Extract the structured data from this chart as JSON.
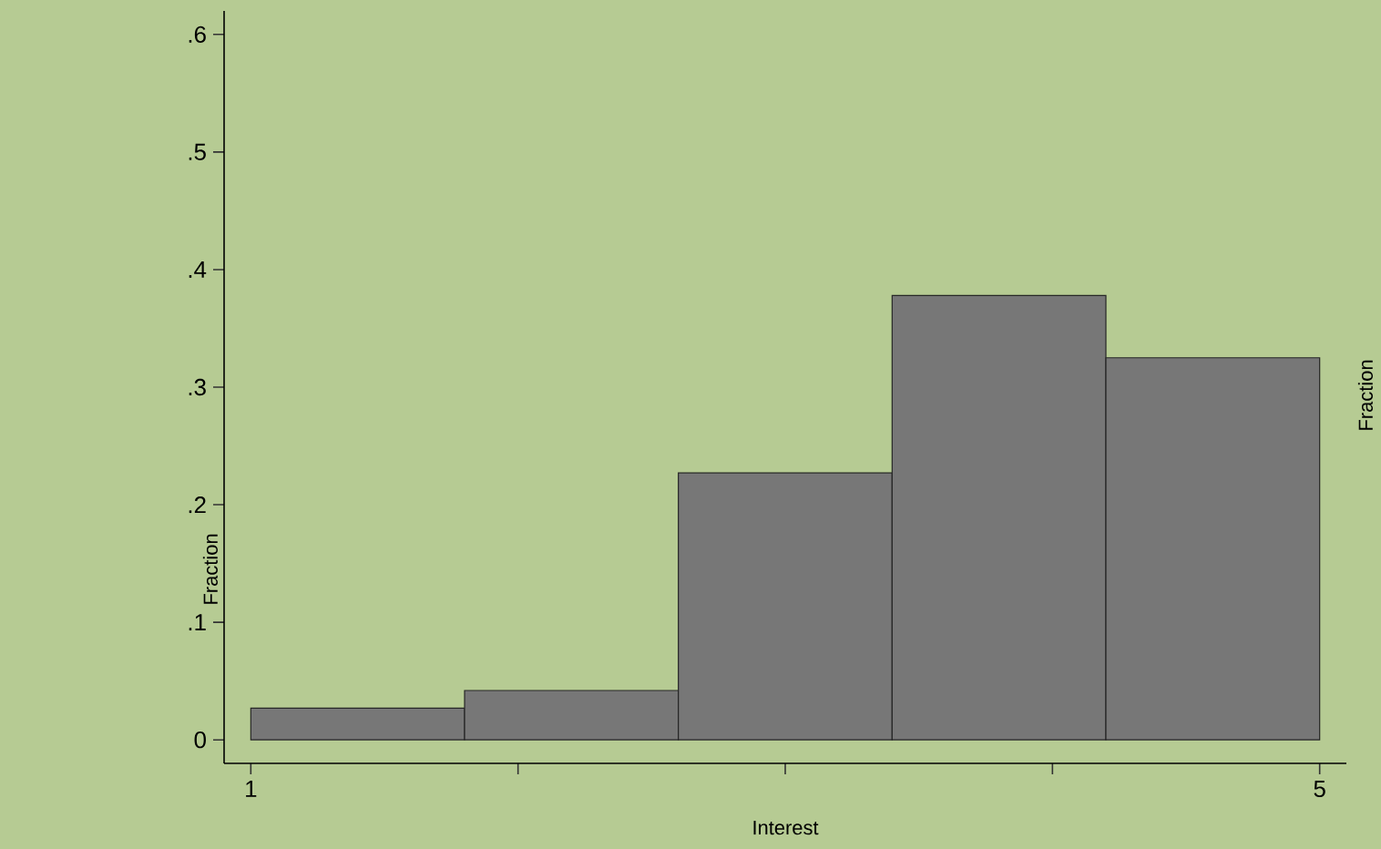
{
  "chart_data": {
    "type": "histogram",
    "xlabel": "Interest",
    "ylabel": "Fraction",
    "bins": [
      1,
      1.8,
      2.6,
      3.4,
      4.2,
      5
    ],
    "values": [
      0.027,
      0.042,
      0.227,
      0.378,
      0.325
    ],
    "color": "#777777",
    "xlim": [
      0.9,
      5.1
    ],
    "ylim": [
      -0.02,
      0.62
    ],
    "xticks": [
      1,
      {
        "value": 2,
        "label": null
      },
      {
        "value": 3,
        "label": null
      },
      {
        "value": 4,
        "label": null
      },
      5
    ],
    "yticks": [
      0,
      {
        "value": 0.1,
        "label": ".1"
      },
      {
        "value": 0.2,
        "label": ".2"
      },
      {
        "value": 0.3,
        "label": ".3"
      },
      {
        "value": 0.4,
        "label": ".4"
      },
      {
        "value": 0.5,
        "label": ".5"
      },
      {
        "value": 0.6,
        "label": ".6"
      }
    ],
    "annotations": [
      "Fraction"
    ]
  }
}
